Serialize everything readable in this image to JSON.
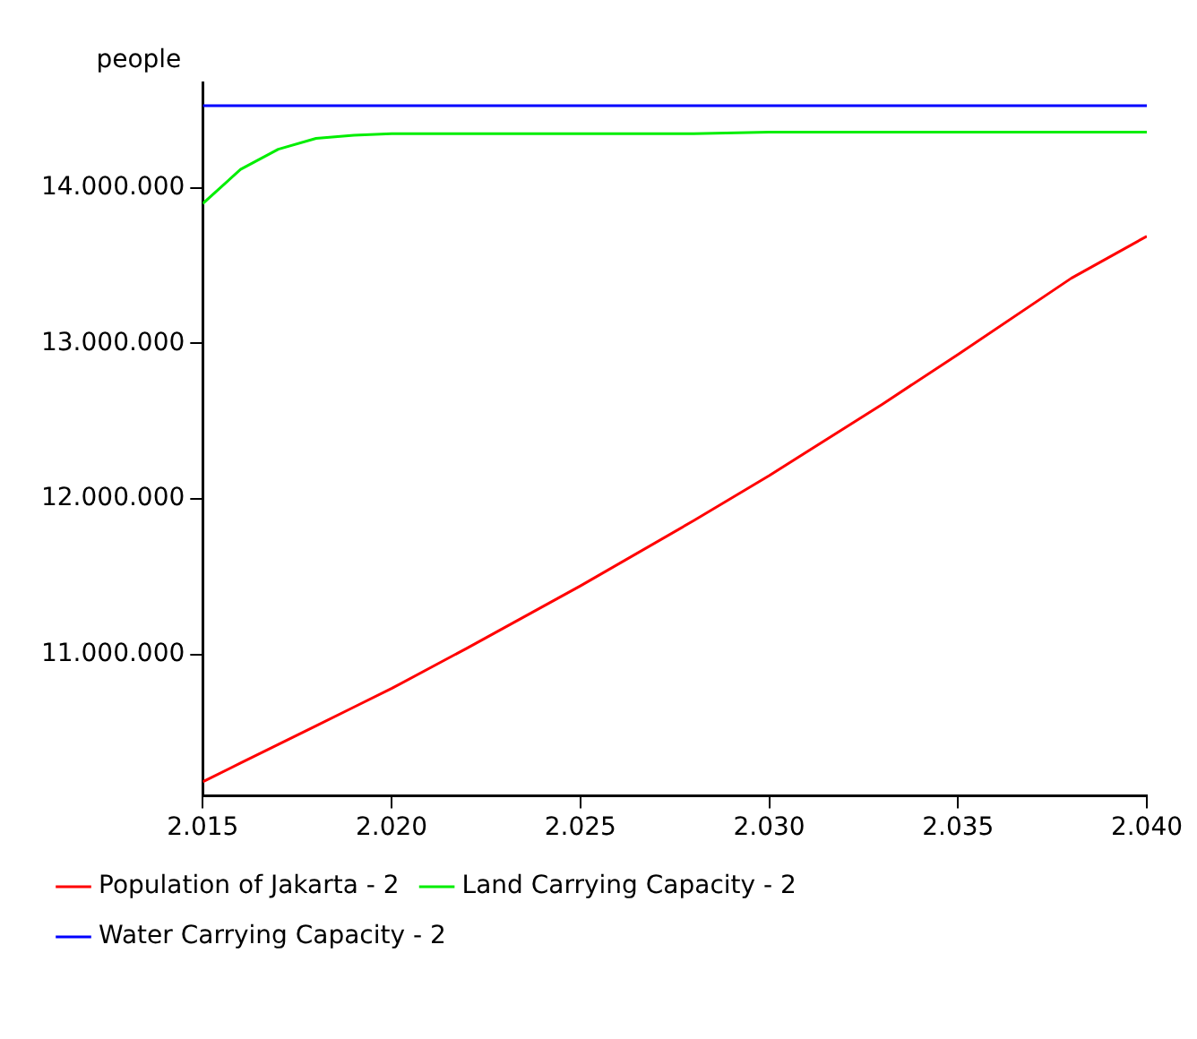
{
  "chart_data": {
    "type": "line",
    "ylabel": "people",
    "x": [
      2015,
      2016,
      2017,
      2018,
      2019,
      2020,
      2022,
      2025,
      2028,
      2030,
      2033,
      2035,
      2038,
      2040
    ],
    "series": [
      {
        "name": "Population of Jakarta - 2",
        "color": "#ff0000",
        "values": [
          10180000,
          10300000,
          10420000,
          10540000,
          10660000,
          10780000,
          11040000,
          11440000,
          11860000,
          12150000,
          12610000,
          12930000,
          13420000,
          13690000
        ]
      },
      {
        "name": "Land Carrying Capacity - 2",
        "color": "#00ee00",
        "values": [
          13900000,
          14120000,
          14250000,
          14320000,
          14340000,
          14350000,
          14350000,
          14350000,
          14350000,
          14360000,
          14360000,
          14360000,
          14360000,
          14360000
        ]
      },
      {
        "name": "Water Carrying Capacity - 2",
        "color": "#0000ff",
        "values": [
          14530000,
          14530000,
          14530000,
          14530000,
          14530000,
          14530000,
          14530000,
          14530000,
          14530000,
          14530000,
          14530000,
          14530000,
          14530000,
          14530000
        ]
      }
    ],
    "xlim": [
      2015,
      2040
    ],
    "xticks": [
      {
        "value": 2015,
        "label": "2.015"
      },
      {
        "value": 2020,
        "label": "2.020"
      },
      {
        "value": 2025,
        "label": "2.025"
      },
      {
        "value": 2030,
        "label": "2.030"
      },
      {
        "value": 2035,
        "label": "2.035"
      },
      {
        "value": 2040,
        "label": "2.040"
      }
    ],
    "ylim": [
      10090000,
      14680000
    ],
    "yticks": [
      {
        "value": 11000000,
        "label": "11.000.000"
      },
      {
        "value": 12000000,
        "label": "12.000.000"
      },
      {
        "value": 13000000,
        "label": "13.000.000"
      },
      {
        "value": 14000000,
        "label": "14.000.000"
      }
    ],
    "grid": false,
    "legend": "bottom",
    "marker": "none",
    "line_style": "solid"
  }
}
